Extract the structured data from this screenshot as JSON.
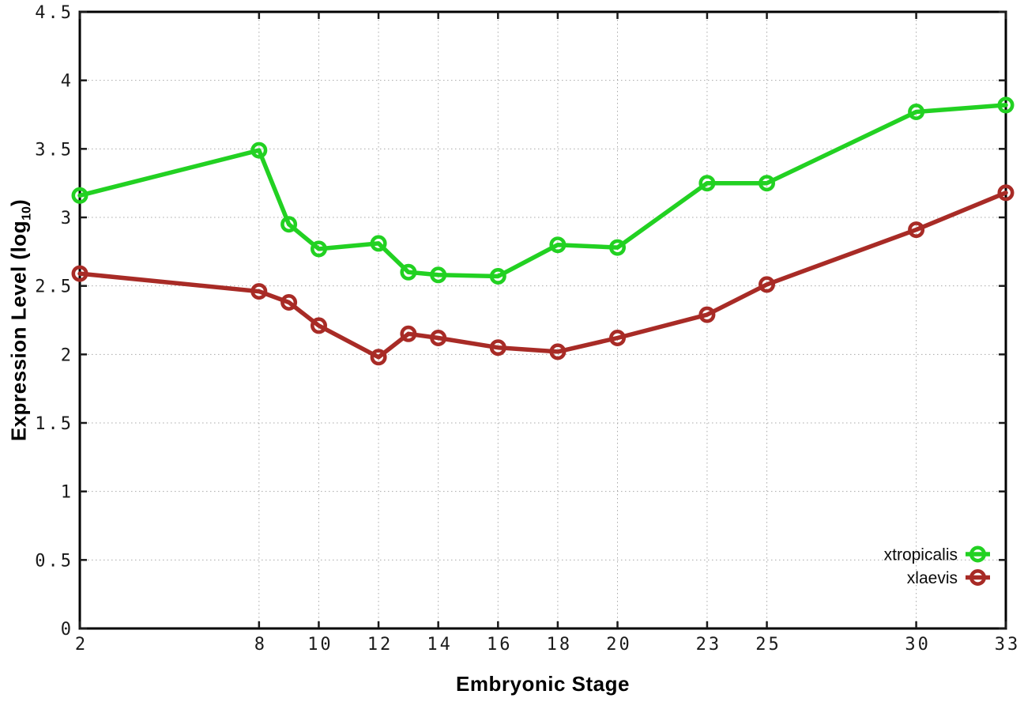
{
  "chart_data": {
    "type": "line",
    "title": "",
    "xlabel": "Embryonic Stage",
    "ylabel_prefix": "Expression Level (log",
    "ylabel_sub": "10",
    "ylabel_suffix": ")",
    "xlim": [
      2,
      33
    ],
    "ylim": [
      0,
      4.5
    ],
    "x_ticks": [
      2,
      8,
      10,
      12,
      14,
      16,
      18,
      20,
      23,
      25,
      30,
      33
    ],
    "x_tick_labels": [
      "2",
      "8",
      "10",
      "12",
      "14",
      "16",
      "18",
      "20",
      "23",
      "25",
      "30",
      "33"
    ],
    "y_ticks": [
      0,
      0.5,
      1,
      1.5,
      2,
      2.5,
      3,
      3.5,
      4,
      4.5
    ],
    "y_tick_labels": [
      "0",
      "0.5",
      "1",
      "1.5",
      "2",
      "2.5",
      "3",
      "3.5",
      "4",
      "4.5"
    ],
    "grid": true,
    "legend_position": "inside-bottom-right",
    "x": [
      2,
      8,
      9,
      10,
      12,
      13,
      14,
      16,
      18,
      20,
      23,
      25,
      30,
      33
    ],
    "series": [
      {
        "name": "xtropicalis",
        "color": "#22d122",
        "marker": "open-circle",
        "values": [
          3.16,
          3.49,
          2.95,
          2.77,
          2.81,
          2.6,
          2.58,
          2.57,
          2.8,
          2.78,
          3.25,
          3.25,
          3.77,
          3.82
        ]
      },
      {
        "name": "xlaevis",
        "color": "#a82b26",
        "marker": "open-circle",
        "values": [
          2.59,
          2.46,
          2.38,
          2.21,
          1.98,
          2.15,
          2.12,
          2.05,
          2.02,
          2.12,
          2.29,
          2.51,
          2.91,
          3.18
        ]
      }
    ],
    "colors": {
      "background": "#ffffff",
      "border": "#000000",
      "grid": "#a8a8a8",
      "tick": "#1a1a1a"
    }
  }
}
